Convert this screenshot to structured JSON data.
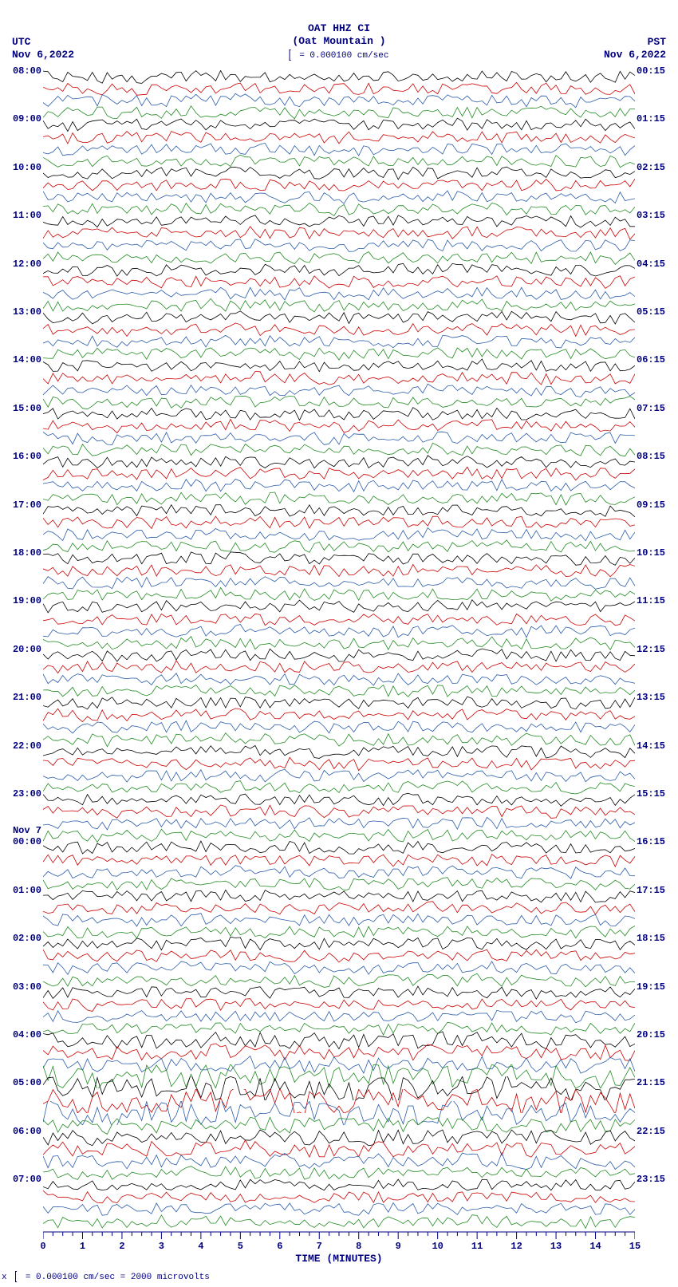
{
  "header": {
    "station": "OAT HHZ CI",
    "location": "(Oat Mountain )",
    "tz_left": "UTC",
    "date_left": "Nov 6,2022",
    "tz_right": "PST",
    "date_right": "Nov 6,2022",
    "scale_text": " = 0.000100 cm/sec"
  },
  "footer": {
    "prefix": "x",
    "text": " = 0.000100 cm/sec =   2000 microvolts"
  },
  "x_axis": {
    "label": "TIME (MINUTES)",
    "min": 0,
    "max": 15,
    "major_ticks": [
      0,
      1,
      2,
      3,
      4,
      5,
      6,
      7,
      8,
      9,
      10,
      11,
      12,
      13,
      14,
      15
    ],
    "minor_per_major": 4
  },
  "plot": {
    "row_height": 15.1,
    "trace_amplitude": 8,
    "trace_frequency": 60,
    "colors": [
      "#000000",
      "#cc0000",
      "#2a5caa",
      "#228b22"
    ],
    "text_color": "#000080"
  },
  "utc_date_break": {
    "row": 64,
    "label": "Nov 7"
  },
  "rows": [
    {
      "utc": "08:00",
      "pst": "00:15"
    },
    {
      "utc": "",
      "pst": ""
    },
    {
      "utc": "",
      "pst": ""
    },
    {
      "utc": "",
      "pst": ""
    },
    {
      "utc": "09:00",
      "pst": "01:15"
    },
    {
      "utc": "",
      "pst": ""
    },
    {
      "utc": "",
      "pst": ""
    },
    {
      "utc": "",
      "pst": ""
    },
    {
      "utc": "10:00",
      "pst": "02:15"
    },
    {
      "utc": "",
      "pst": ""
    },
    {
      "utc": "",
      "pst": ""
    },
    {
      "utc": "",
      "pst": ""
    },
    {
      "utc": "11:00",
      "pst": "03:15"
    },
    {
      "utc": "",
      "pst": ""
    },
    {
      "utc": "",
      "pst": ""
    },
    {
      "utc": "",
      "pst": ""
    },
    {
      "utc": "12:00",
      "pst": "04:15"
    },
    {
      "utc": "",
      "pst": ""
    },
    {
      "utc": "",
      "pst": ""
    },
    {
      "utc": "",
      "pst": ""
    },
    {
      "utc": "13:00",
      "pst": "05:15"
    },
    {
      "utc": "",
      "pst": ""
    },
    {
      "utc": "",
      "pst": ""
    },
    {
      "utc": "",
      "pst": ""
    },
    {
      "utc": "14:00",
      "pst": "06:15"
    },
    {
      "utc": "",
      "pst": ""
    },
    {
      "utc": "",
      "pst": ""
    },
    {
      "utc": "",
      "pst": ""
    },
    {
      "utc": "15:00",
      "pst": "07:15"
    },
    {
      "utc": "",
      "pst": ""
    },
    {
      "utc": "",
      "pst": ""
    },
    {
      "utc": "",
      "pst": ""
    },
    {
      "utc": "16:00",
      "pst": "08:15"
    },
    {
      "utc": "",
      "pst": ""
    },
    {
      "utc": "",
      "pst": ""
    },
    {
      "utc": "",
      "pst": ""
    },
    {
      "utc": "17:00",
      "pst": "09:15"
    },
    {
      "utc": "",
      "pst": ""
    },
    {
      "utc": "",
      "pst": ""
    },
    {
      "utc": "",
      "pst": ""
    },
    {
      "utc": "18:00",
      "pst": "10:15"
    },
    {
      "utc": "",
      "pst": ""
    },
    {
      "utc": "",
      "pst": ""
    },
    {
      "utc": "",
      "pst": ""
    },
    {
      "utc": "19:00",
      "pst": "11:15"
    },
    {
      "utc": "",
      "pst": ""
    },
    {
      "utc": "",
      "pst": ""
    },
    {
      "utc": "",
      "pst": ""
    },
    {
      "utc": "20:00",
      "pst": "12:15"
    },
    {
      "utc": "",
      "pst": ""
    },
    {
      "utc": "",
      "pst": ""
    },
    {
      "utc": "",
      "pst": ""
    },
    {
      "utc": "21:00",
      "pst": "13:15"
    },
    {
      "utc": "",
      "pst": ""
    },
    {
      "utc": "",
      "pst": ""
    },
    {
      "utc": "",
      "pst": ""
    },
    {
      "utc": "22:00",
      "pst": "14:15"
    },
    {
      "utc": "",
      "pst": ""
    },
    {
      "utc": "",
      "pst": ""
    },
    {
      "utc": "",
      "pst": ""
    },
    {
      "utc": "23:00",
      "pst": "15:15"
    },
    {
      "utc": "",
      "pst": ""
    },
    {
      "utc": "",
      "pst": ""
    },
    {
      "utc": "",
      "pst": ""
    },
    {
      "utc": "00:00",
      "pst": "16:15"
    },
    {
      "utc": "",
      "pst": ""
    },
    {
      "utc": "",
      "pst": ""
    },
    {
      "utc": "",
      "pst": ""
    },
    {
      "utc": "01:00",
      "pst": "17:15"
    },
    {
      "utc": "",
      "pst": ""
    },
    {
      "utc": "",
      "pst": ""
    },
    {
      "utc": "",
      "pst": ""
    },
    {
      "utc": "02:00",
      "pst": "18:15"
    },
    {
      "utc": "",
      "pst": ""
    },
    {
      "utc": "",
      "pst": ""
    },
    {
      "utc": "",
      "pst": ""
    },
    {
      "utc": "03:00",
      "pst": "19:15"
    },
    {
      "utc": "",
      "pst": ""
    },
    {
      "utc": "",
      "pst": ""
    },
    {
      "utc": "",
      "pst": ""
    },
    {
      "utc": "04:00",
      "pst": "20:15"
    },
    {
      "utc": "",
      "pst": ""
    },
    {
      "utc": "",
      "pst": ""
    },
    {
      "utc": "",
      "pst": ""
    },
    {
      "utc": "05:00",
      "pst": "21:15"
    },
    {
      "utc": "",
      "pst": ""
    },
    {
      "utc": "",
      "pst": ""
    },
    {
      "utc": "",
      "pst": ""
    },
    {
      "utc": "06:00",
      "pst": "22:15"
    },
    {
      "utc": "",
      "pst": ""
    },
    {
      "utc": "",
      "pst": ""
    },
    {
      "utc": "",
      "pst": ""
    },
    {
      "utc": "07:00",
      "pst": "23:15"
    },
    {
      "utc": "",
      "pst": ""
    },
    {
      "utc": "",
      "pst": ""
    },
    {
      "utc": "",
      "pst": ""
    }
  ]
}
